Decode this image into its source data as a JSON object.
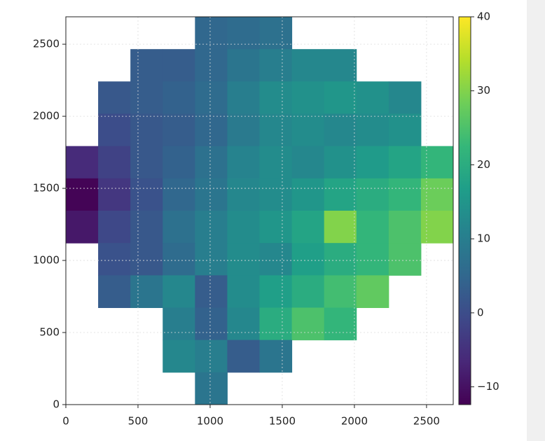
{
  "chart_data": {
    "type": "heatmap",
    "colormap": "viridis",
    "grid": true,
    "xlim": [
      0,
      2685
    ],
    "ylim": [
      0,
      2690
    ],
    "xticks": [
      0,
      500,
      1000,
      1500,
      2000,
      2500
    ],
    "yticks": [
      0,
      500,
      1000,
      1500,
      2000,
      2500
    ],
    "clim": [
      -12.4,
      40
    ],
    "cticks": [
      {
        "value": -10,
        "label": "−10"
      },
      0,
      10,
      20,
      30,
      40
    ],
    "z": [
      [
        null,
        null,
        null,
        null,
        5,
        6,
        7,
        null,
        null,
        null,
        null,
        null
      ],
      [
        null,
        null,
        3,
        3,
        5,
        8,
        10,
        12,
        12,
        null,
        null,
        null
      ],
      [
        null,
        2,
        3,
        4,
        6,
        10,
        13,
        14,
        15,
        14,
        12,
        null
      ],
      [
        null,
        0,
        2,
        3,
        5,
        9,
        12,
        13,
        12,
        13,
        14,
        null
      ],
      [
        -6,
        -2,
        2,
        4,
        7,
        11,
        13,
        12,
        14,
        16,
        18,
        22
      ],
      [
        -12,
        -4,
        1,
        5,
        8,
        12,
        13,
        15,
        18,
        20,
        22,
        28
      ],
      [
        -9,
        -1,
        2,
        7,
        10,
        13,
        15,
        18,
        30,
        22,
        25,
        30
      ],
      [
        null,
        1,
        2,
        6,
        10,
        13,
        12,
        17,
        20,
        22,
        25,
        null
      ],
      [
        null,
        3,
        8,
        12,
        3,
        13,
        17,
        20,
        24,
        27,
        null,
        null
      ],
      [
        null,
        null,
        null,
        10,
        4,
        12,
        20,
        25,
        22,
        null,
        null,
        null
      ],
      [
        null,
        null,
        null,
        12,
        10,
        3,
        8,
        null,
        null,
        null,
        null,
        null
      ],
      [
        null,
        null,
        null,
        null,
        8,
        null,
        null,
        null,
        null,
        null,
        null,
        null
      ]
    ]
  }
}
